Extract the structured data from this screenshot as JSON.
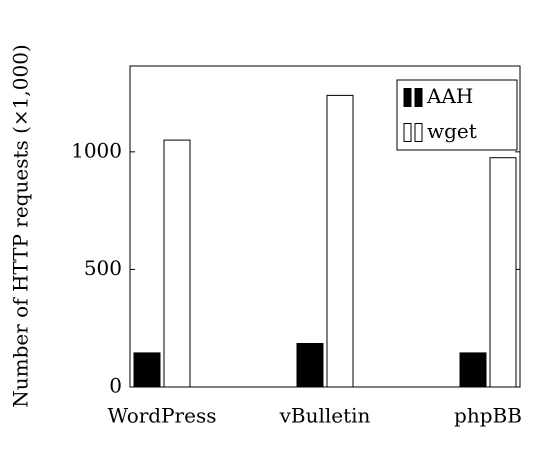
{
  "chart_data": {
    "type": "bar",
    "ylabel": "Number of HTTP requests (×1,000)",
    "categories": [
      "WordPress",
      "vBulletin",
      "phpBB"
    ],
    "series": [
      {
        "name": "AAH",
        "color": "#000000",
        "values": [
          145,
          185,
          145
        ]
      },
      {
        "name": "wget",
        "color": "#ffffff",
        "values": [
          1050,
          1240,
          975
        ]
      }
    ],
    "ylim": [
      0,
      1365
    ],
    "yticks": [
      0,
      500,
      1000
    ],
    "legend": "upper right"
  }
}
